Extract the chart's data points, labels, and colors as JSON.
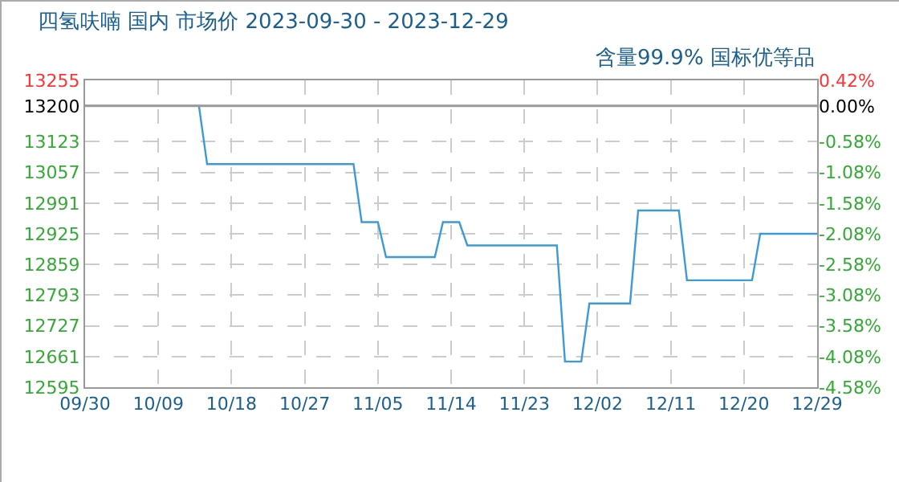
{
  "chart_data": {
    "type": "line",
    "title": "四氢呋喃 国内 市场价 2023-09-30 - 2023-12-29",
    "subtitle": "含量99.9% 国标优等品",
    "x": [
      "2023-09-30",
      "2023-10-14",
      "2023-10-15",
      "2023-11-02",
      "2023-11-03",
      "2023-11-05",
      "2023-11-06",
      "2023-11-12",
      "2023-11-13",
      "2023-11-15",
      "2023-11-16",
      "2023-11-27",
      "2023-11-28",
      "2023-11-30",
      "2023-12-01",
      "2023-12-06",
      "2023-12-07",
      "2023-12-12",
      "2023-12-13",
      "2023-12-21",
      "2023-12-22",
      "2023-12-29"
    ],
    "series": [
      {
        "color": "#3d9ad6",
        "values": [
          13200,
          13200,
          13075,
          13075,
          12950,
          12950,
          12875,
          12875,
          12950,
          12950,
          12900,
          12900,
          12650,
          12650,
          12775,
          12775,
          12975,
          12975,
          12825,
          12825,
          12925,
          12925
        ]
      }
    ],
    "xlim": [
      "2023-09-30",
      "2023-12-29"
    ],
    "xticks": [
      {
        "value": "2023-09-30",
        "label": "09/30"
      },
      {
        "value": "2023-10-09",
        "label": "10/09"
      },
      {
        "value": "2023-10-18",
        "label": "10/18"
      },
      {
        "value": "2023-10-27",
        "label": "10/27"
      },
      {
        "value": "2023-11-05",
        "label": "11/05"
      },
      {
        "value": "2023-11-14",
        "label": "11/14"
      },
      {
        "value": "2023-11-23",
        "label": "11/23"
      },
      {
        "value": "2023-12-02",
        "label": "12/02"
      },
      {
        "value": "2023-12-11",
        "label": "12/11"
      },
      {
        "value": "2023-12-20",
        "label": "12/20"
      },
      {
        "value": "2023-12-29",
        "label": "12/29"
      }
    ],
    "ylim": [
      12595,
      13255
    ],
    "yticks": [
      12595,
      12661,
      12727,
      12793,
      12859,
      12925,
      12991,
      13057,
      13123,
      13200,
      13255
    ],
    "y2lim": [
      -4.58,
      0.42
    ],
    "y2ticks": [
      {
        "value": -4.58,
        "label": "-4.58%"
      },
      {
        "value": -4.08,
        "label": "-4.08%"
      },
      {
        "value": -3.58,
        "label": "-3.58%"
      },
      {
        "value": -3.08,
        "label": "-3.08%"
      },
      {
        "value": -2.58,
        "label": "-2.58%"
      },
      {
        "value": -2.08,
        "label": "-2.08%"
      },
      {
        "value": -1.58,
        "label": "-1.58%"
      },
      {
        "value": -1.08,
        "label": "-1.08%"
      },
      {
        "value": -0.58,
        "label": "-0.58%"
      },
      {
        "value": 0,
        "label": "0.00%"
      },
      {
        "value": 0.42,
        "label": "0.42%"
      }
    ],
    "ref_lines": [
      {
        "axis": "y",
        "value": 13200,
        "color": "#999999"
      }
    ],
    "grid": true,
    "marker": "none",
    "line_style": "solid"
  }
}
